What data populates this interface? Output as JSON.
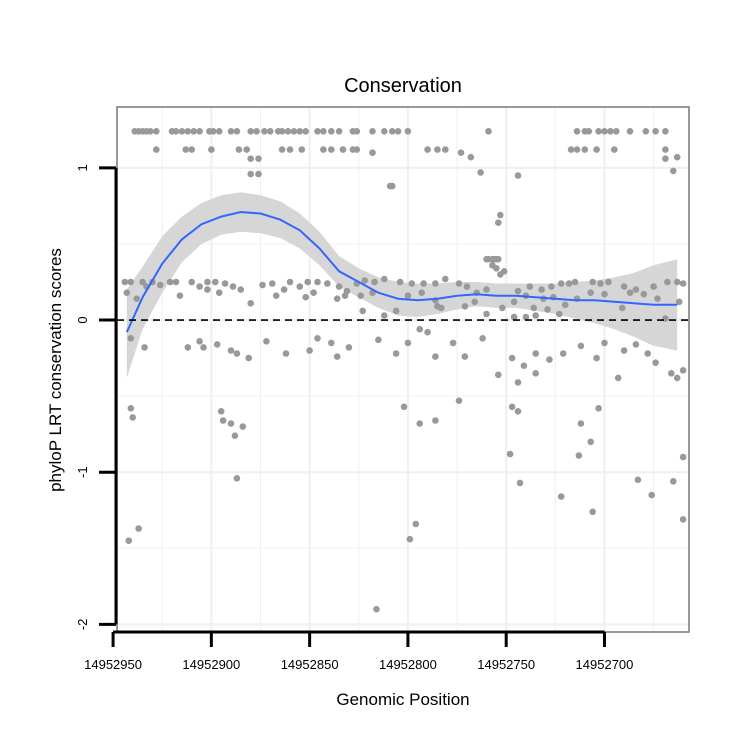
{
  "chart_data": {
    "type": "scatter",
    "title": "Conservation",
    "xlabel": "Genomic Position",
    "ylabel": "phyloP LRT conservation scores",
    "x_axis_reversed": true,
    "xlim": [
      14952948,
      14952657
    ],
    "ylim": [
      -2.05,
      1.4
    ],
    "x_ticks": [
      {
        "value": 14952950,
        "label": "14952950"
      },
      {
        "value": 14952900,
        "label": "14952900"
      },
      {
        "value": 14952850,
        "label": "14952850"
      },
      {
        "value": 14952800,
        "label": "14952800"
      },
      {
        "value": 14952750,
        "label": "14952750"
      },
      {
        "value": 14952700,
        "label": "14952700"
      }
    ],
    "y_ticks": [
      {
        "value": 1,
        "label": "1"
      },
      {
        "value": 0,
        "label": "0"
      },
      {
        "value": -1,
        "label": "-1"
      },
      {
        "value": -2,
        "label": "-2"
      }
    ],
    "grid": true,
    "reference_line": {
      "y": 0,
      "style": "dashed"
    },
    "colors": {
      "points": "#999999",
      "smooth_line": "#3366ff",
      "confidence_band": "#d6d6d6",
      "grid": "#f0f0f0",
      "panel_border": "#808080"
    },
    "points": [
      [
        14952939,
        1.24
      ],
      [
        14952937,
        1.24
      ],
      [
        14952935,
        1.24
      ],
      [
        14952933,
        1.24
      ],
      [
        14952931,
        1.24
      ],
      [
        14952928,
        1.24
      ],
      [
        14952920,
        1.24
      ],
      [
        14952918,
        1.24
      ],
      [
        14952915,
        1.24
      ],
      [
        14952912,
        1.24
      ],
      [
        14952909,
        1.24
      ],
      [
        14952906,
        1.24
      ],
      [
        14952901,
        1.24
      ],
      [
        14952899,
        1.24
      ],
      [
        14952896,
        1.24
      ],
      [
        14952890,
        1.24
      ],
      [
        14952887,
        1.24
      ],
      [
        14952880,
        1.24
      ],
      [
        14952877,
        1.24
      ],
      [
        14952873,
        1.24
      ],
      [
        14952870,
        1.24
      ],
      [
        14952866,
        1.24
      ],
      [
        14952864,
        1.24
      ],
      [
        14952861,
        1.24
      ],
      [
        14952858,
        1.24
      ],
      [
        14952855,
        1.24
      ],
      [
        14952852,
        1.24
      ],
      [
        14952846,
        1.24
      ],
      [
        14952843,
        1.24
      ],
      [
        14952839,
        1.24
      ],
      [
        14952835,
        1.24
      ],
      [
        14952828,
        1.24
      ],
      [
        14952826,
        1.24
      ],
      [
        14952818,
        1.24
      ],
      [
        14952812,
        1.24
      ],
      [
        14952808,
        1.24
      ],
      [
        14952805,
        1.24
      ],
      [
        14952800,
        1.24
      ],
      [
        14952714,
        1.24
      ],
      [
        14952710,
        1.24
      ],
      [
        14952708,
        1.24
      ],
      [
        14952703,
        1.24
      ],
      [
        14952700,
        1.24
      ],
      [
        14952697,
        1.24
      ],
      [
        14952694,
        1.24
      ],
      [
        14952687,
        1.24
      ],
      [
        14952679,
        1.24
      ],
      [
        14952674,
        1.24
      ],
      [
        14952669,
        1.24
      ],
      [
        14952759,
        1.24
      ],
      [
        14952928,
        1.12
      ],
      [
        14952913,
        1.12
      ],
      [
        14952910,
        1.12
      ],
      [
        14952900,
        1.12
      ],
      [
        14952886,
        1.12
      ],
      [
        14952882,
        1.12
      ],
      [
        14952864,
        1.12
      ],
      [
        14952860,
        1.12
      ],
      [
        14952854,
        1.12
      ],
      [
        14952843,
        1.12
      ],
      [
        14952839,
        1.12
      ],
      [
        14952833,
        1.12
      ],
      [
        14952828,
        1.12
      ],
      [
        14952826,
        1.12
      ],
      [
        14952790,
        1.12
      ],
      [
        14952785,
        1.12
      ],
      [
        14952781,
        1.12
      ],
      [
        14952717,
        1.12
      ],
      [
        14952714,
        1.12
      ],
      [
        14952710,
        1.12
      ],
      [
        14952704,
        1.12
      ],
      [
        14952695,
        1.12
      ],
      [
        14952669,
        1.12
      ],
      [
        14952818,
        1.1
      ],
      [
        14952880,
        1.06
      ],
      [
        14952876,
        1.06
      ],
      [
        14952773,
        1.1
      ],
      [
        14952768,
        1.07
      ],
      [
        14952663,
        1.07
      ],
      [
        14952669,
        1.06
      ],
      [
        14952880,
        0.96
      ],
      [
        14952876,
        0.96
      ],
      [
        14952763,
        0.97
      ],
      [
        14952744,
        0.95
      ],
      [
        14952665,
        0.98
      ],
      [
        14952809,
        0.88
      ],
      [
        14952808,
        0.88
      ],
      [
        14952754,
        0.64
      ],
      [
        14952753,
        0.69
      ],
      [
        14952760,
        0.4
      ],
      [
        14952759,
        0.4
      ],
      [
        14952757,
        0.4
      ],
      [
        14952756,
        0.4
      ],
      [
        14952755,
        0.4
      ],
      [
        14952754,
        0.4
      ],
      [
        14952757,
        0.36
      ],
      [
        14952755,
        0.34
      ],
      [
        14952751,
        0.32
      ],
      [
        14952753,
        0.3
      ],
      [
        14952944,
        0.25
      ],
      [
        14952941,
        0.25
      ],
      [
        14952935,
        0.25
      ],
      [
        14952933,
        0.22
      ],
      [
        14952930,
        0.25
      ],
      [
        14952926,
        0.23
      ],
      [
        14952921,
        0.25
      ],
      [
        14952918,
        0.25
      ],
      [
        14952910,
        0.25
      ],
      [
        14952906,
        0.22
      ],
      [
        14952902,
        0.25
      ],
      [
        14952898,
        0.25
      ],
      [
        14952893,
        0.24
      ],
      [
        14952889,
        0.22
      ],
      [
        14952885,
        0.2
      ],
      [
        14952874,
        0.23
      ],
      [
        14952869,
        0.24
      ],
      [
        14952863,
        0.2
      ],
      [
        14952860,
        0.25
      ],
      [
        14952855,
        0.22
      ],
      [
        14952851,
        0.25
      ],
      [
        14952846,
        0.25
      ],
      [
        14952841,
        0.24
      ],
      [
        14952835,
        0.22
      ],
      [
        14952831,
        0.19
      ],
      [
        14952826,
        0.24
      ],
      [
        14952822,
        0.26
      ],
      [
        14952817,
        0.25
      ],
      [
        14952812,
        0.27
      ],
      [
        14952804,
        0.25
      ],
      [
        14952798,
        0.24
      ],
      [
        14952792,
        0.24
      ],
      [
        14952786,
        0.24
      ],
      [
        14952781,
        0.27
      ],
      [
        14952774,
        0.24
      ],
      [
        14952770,
        0.22
      ],
      [
        14952765,
        0.18
      ],
      [
        14952760,
        0.2
      ],
      [
        14952744,
        0.19
      ],
      [
        14952738,
        0.22
      ],
      [
        14952732,
        0.2
      ],
      [
        14952727,
        0.22
      ],
      [
        14952722,
        0.24
      ],
      [
        14952718,
        0.24
      ],
      [
        14952715,
        0.25
      ],
      [
        14952706,
        0.25
      ],
      [
        14952702,
        0.24
      ],
      [
        14952698,
        0.25
      ],
      [
        14952690,
        0.22
      ],
      [
        14952684,
        0.2
      ],
      [
        14952680,
        0.17
      ],
      [
        14952675,
        0.22
      ],
      [
        14952668,
        0.25
      ],
      [
        14952663,
        0.25
      ],
      [
        14952660,
        0.24
      ],
      [
        14952943,
        0.18
      ],
      [
        14952938,
        0.14
      ],
      [
        14952916,
        0.16
      ],
      [
        14952902,
        0.2
      ],
      [
        14952896,
        0.18
      ],
      [
        14952880,
        0.11
      ],
      [
        14952867,
        0.16
      ],
      [
        14952852,
        0.15
      ],
      [
        14952848,
        0.18
      ],
      [
        14952836,
        0.14
      ],
      [
        14952832,
        0.16
      ],
      [
        14952824,
        0.16
      ],
      [
        14952818,
        0.18
      ],
      [
        14952800,
        0.16
      ],
      [
        14952793,
        0.18
      ],
      [
        14952786,
        0.13
      ],
      [
        14952783,
        0.08
      ],
      [
        14952771,
        0.09
      ],
      [
        14952766,
        0.12
      ],
      [
        14952752,
        0.08
      ],
      [
        14952746,
        0.12
      ],
      [
        14952740,
        0.16
      ],
      [
        14952736,
        0.08
      ],
      [
        14952731,
        0.14
      ],
      [
        14952726,
        0.15
      ],
      [
        14952723,
        0.04
      ],
      [
        14952720,
        0.1
      ],
      [
        14952714,
        0.14
      ],
      [
        14952707,
        0.18
      ],
      [
        14952700,
        0.17
      ],
      [
        14952687,
        0.18
      ],
      [
        14952673,
        0.14
      ],
      [
        14952662,
        0.12
      ],
      [
        14952823,
        0.06
      ],
      [
        14952812,
        0.03
      ],
      [
        14952806,
        0.06
      ],
      [
        14952785,
        0.09
      ],
      [
        14952760,
        0.04
      ],
      [
        14952746,
        0.02
      ],
      [
        14952740,
        0.02
      ],
      [
        14952735,
        0.03
      ],
      [
        14952729,
        0.07
      ],
      [
        14952691,
        0.08
      ],
      [
        14952669,
        0.01
      ],
      [
        14952941,
        -0.12
      ],
      [
        14952934,
        -0.18
      ],
      [
        14952912,
        -0.18
      ],
      [
        14952906,
        -0.14
      ],
      [
        14952904,
        -0.18
      ],
      [
        14952897,
        -0.16
      ],
      [
        14952890,
        -0.2
      ],
      [
        14952887,
        -0.22
      ],
      [
        14952881,
        -0.25
      ],
      [
        14952872,
        -0.14
      ],
      [
        14952862,
        -0.22
      ],
      [
        14952850,
        -0.2
      ],
      [
        14952846,
        -0.12
      ],
      [
        14952839,
        -0.15
      ],
      [
        14952836,
        -0.24
      ],
      [
        14952830,
        -0.18
      ],
      [
        14952815,
        -0.13
      ],
      [
        14952806,
        -0.22
      ],
      [
        14952800,
        -0.15
      ],
      [
        14952794,
        -0.06
      ],
      [
        14952790,
        -0.08
      ],
      [
        14952786,
        -0.24
      ],
      [
        14952777,
        -0.15
      ],
      [
        14952771,
        -0.24
      ],
      [
        14952762,
        -0.12
      ],
      [
        14952754,
        -0.36
      ],
      [
        14952747,
        -0.25
      ],
      [
        14952741,
        -0.3
      ],
      [
        14952735,
        -0.35
      ],
      [
        14952728,
        -0.26
      ],
      [
        14952721,
        -0.22
      ],
      [
        14952712,
        -0.17
      ],
      [
        14952704,
        -0.25
      ],
      [
        14952700,
        -0.15
      ],
      [
        14952690,
        -0.2
      ],
      [
        14952684,
        -0.16
      ],
      [
        14952678,
        -0.22
      ],
      [
        14952674,
        -0.28
      ],
      [
        14952666,
        -0.35
      ],
      [
        14952663,
        -0.38
      ],
      [
        14952660,
        -0.33
      ],
      [
        14952744,
        -0.41
      ],
      [
        14952735,
        -0.22
      ],
      [
        14952693,
        -0.38
      ],
      [
        14952941,
        -0.58
      ],
      [
        14952940,
        -0.64
      ],
      [
        14952895,
        -0.6
      ],
      [
        14952894,
        -0.66
      ],
      [
        14952890,
        -0.68
      ],
      [
        14952888,
        -0.76
      ],
      [
        14952884,
        -0.7
      ],
      [
        14952802,
        -0.57
      ],
      [
        14952794,
        -0.68
      ],
      [
        14952786,
        -0.66
      ],
      [
        14952774,
        -0.53
      ],
      [
        14952747,
        -0.57
      ],
      [
        14952744,
        -0.6
      ],
      [
        14952712,
        -0.68
      ],
      [
        14952703,
        -0.58
      ],
      [
        14952707,
        -0.8
      ],
      [
        14952713,
        -0.89
      ],
      [
        14952748,
        -0.88
      ],
      [
        14952706,
        -1.26
      ],
      [
        14952683,
        -1.05
      ],
      [
        14952676,
        -1.15
      ],
      [
        14952665,
        -1.06
      ],
      [
        14952660,
        -0.9
      ],
      [
        14952660,
        -1.31
      ],
      [
        14952743,
        -1.07
      ],
      [
        14952722,
        -1.16
      ],
      [
        14952887,
        -1.04
      ],
      [
        14952937,
        -1.37
      ],
      [
        14952942,
        -1.45
      ],
      [
        14952799,
        -1.44
      ],
      [
        14952796,
        -1.34
      ],
      [
        14952816,
        -1.9
      ]
    ],
    "smooth": [
      [
        14952943,
        -0.08
      ],
      [
        14952935,
        0.15
      ],
      [
        14952925,
        0.37
      ],
      [
        14952915,
        0.53
      ],
      [
        14952905,
        0.63
      ],
      [
        14952895,
        0.68
      ],
      [
        14952885,
        0.71
      ],
      [
        14952875,
        0.7
      ],
      [
        14952865,
        0.66
      ],
      [
        14952855,
        0.59
      ],
      [
        14952845,
        0.47
      ],
      [
        14952835,
        0.32
      ],
      [
        14952825,
        0.25
      ],
      [
        14952815,
        0.18
      ],
      [
        14952805,
        0.14
      ],
      [
        14952795,
        0.13
      ],
      [
        14952785,
        0.14
      ],
      [
        14952775,
        0.16
      ],
      [
        14952765,
        0.17
      ],
      [
        14952755,
        0.16
      ],
      [
        14952745,
        0.16
      ],
      [
        14952735,
        0.15
      ],
      [
        14952725,
        0.14
      ],
      [
        14952715,
        0.13
      ],
      [
        14952705,
        0.13
      ],
      [
        14952695,
        0.12
      ],
      [
        14952685,
        0.11
      ],
      [
        14952675,
        0.1
      ],
      [
        14952663,
        0.1
      ]
    ],
    "band_upper": [
      [
        14952943,
        0.2
      ],
      [
        14952935,
        0.35
      ],
      [
        14952925,
        0.55
      ],
      [
        14952915,
        0.68
      ],
      [
        14952905,
        0.77
      ],
      [
        14952895,
        0.82
      ],
      [
        14952885,
        0.84
      ],
      [
        14952875,
        0.82
      ],
      [
        14952865,
        0.78
      ],
      [
        14952855,
        0.7
      ],
      [
        14952845,
        0.58
      ],
      [
        14952835,
        0.42
      ],
      [
        14952825,
        0.34
      ],
      [
        14952815,
        0.28
      ],
      [
        14952805,
        0.25
      ],
      [
        14952795,
        0.24
      ],
      [
        14952785,
        0.24
      ],
      [
        14952775,
        0.25
      ],
      [
        14952765,
        0.25
      ],
      [
        14952755,
        0.24
      ],
      [
        14952745,
        0.24
      ],
      [
        14952735,
        0.24
      ],
      [
        14952725,
        0.24
      ],
      [
        14952715,
        0.25
      ],
      [
        14952705,
        0.26
      ],
      [
        14952695,
        0.28
      ],
      [
        14952685,
        0.31
      ],
      [
        14952675,
        0.36
      ],
      [
        14952663,
        0.4
      ]
    ],
    "band_lower": [
      [
        14952943,
        -0.38
      ],
      [
        14952935,
        -0.06
      ],
      [
        14952925,
        0.18
      ],
      [
        14952915,
        0.38
      ],
      [
        14952905,
        0.5
      ],
      [
        14952895,
        0.56
      ],
      [
        14952885,
        0.58
      ],
      [
        14952875,
        0.57
      ],
      [
        14952865,
        0.54
      ],
      [
        14952855,
        0.47
      ],
      [
        14952845,
        0.36
      ],
      [
        14952835,
        0.22
      ],
      [
        14952825,
        0.15
      ],
      [
        14952815,
        0.08
      ],
      [
        14952805,
        0.03
      ],
      [
        14952795,
        0.02
      ],
      [
        14952785,
        0.04
      ],
      [
        14952775,
        0.07
      ],
      [
        14952765,
        0.09
      ],
      [
        14952755,
        0.08
      ],
      [
        14952745,
        0.08
      ],
      [
        14952735,
        0.06
      ],
      [
        14952725,
        0.04
      ],
      [
        14952715,
        0.01
      ],
      [
        14952705,
        -0.02
      ],
      [
        14952695,
        -0.06
      ],
      [
        14952685,
        -0.11
      ],
      [
        14952675,
        -0.17
      ],
      [
        14952663,
        -0.2
      ]
    ]
  }
}
